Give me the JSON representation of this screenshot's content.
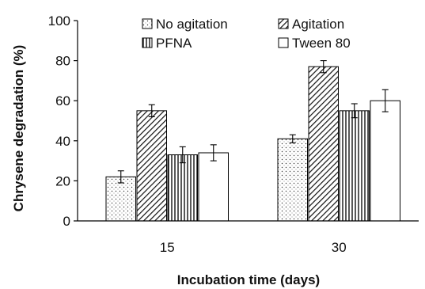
{
  "chart_data": {
    "type": "bar",
    "categories": [
      "15",
      "30"
    ],
    "series": [
      {
        "name": "No agitation",
        "pattern": "dots",
        "values": [
          22,
          41
        ],
        "errors": [
          3,
          2
        ]
      },
      {
        "name": "Agitation",
        "pattern": "diagonal",
        "values": [
          55,
          77
        ],
        "errors": [
          3,
          3
        ]
      },
      {
        "name": "PFNA",
        "pattern": "vertical",
        "values": [
          33,
          55
        ],
        "errors": [
          4,
          3.5
        ]
      },
      {
        "name": "Tween 80",
        "pattern": "none",
        "values": [
          34,
          60
        ],
        "errors": [
          4,
          5.5
        ]
      }
    ],
    "xlabel": "Incubation time (days)",
    "ylabel": "Chrysene degradation (%)",
    "ylim": [
      0,
      100
    ],
    "yticks": [
      0,
      20,
      40,
      60,
      80,
      100
    ],
    "legend_position": "top",
    "grid": false
  }
}
